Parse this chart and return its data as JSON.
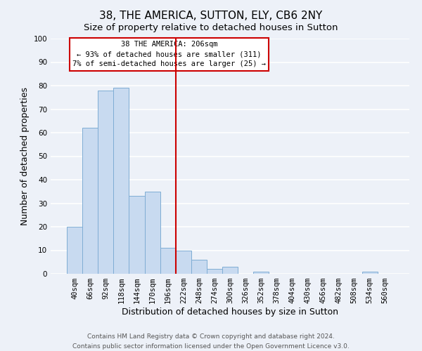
{
  "title": "38, THE AMERICA, SUTTON, ELY, CB6 2NY",
  "subtitle": "Size of property relative to detached houses in Sutton",
  "xlabel": "Distribution of detached houses by size in Sutton",
  "ylabel": "Number of detached properties",
  "bar_labels": [
    "40sqm",
    "66sqm",
    "92sqm",
    "118sqm",
    "144sqm",
    "170sqm",
    "196sqm",
    "222sqm",
    "248sqm",
    "274sqm",
    "300sqm",
    "326sqm",
    "352sqm",
    "378sqm",
    "404sqm",
    "430sqm",
    "456sqm",
    "482sqm",
    "508sqm",
    "534sqm",
    "560sqm"
  ],
  "bar_values": [
    20,
    62,
    78,
    79,
    33,
    35,
    11,
    10,
    6,
    2,
    3,
    0,
    1,
    0,
    0,
    0,
    0,
    0,
    0,
    1,
    0
  ],
  "bar_color": "#c8daf0",
  "bar_edge_color": "#7fadd4",
  "vline_x": 6.5,
  "vline_color": "#cc0000",
  "ylim": [
    0,
    100
  ],
  "yticks": [
    0,
    10,
    20,
    30,
    40,
    50,
    60,
    70,
    80,
    90,
    100
  ],
  "annotation_title": "38 THE AMERICA: 206sqm",
  "annotation_line1": "← 93% of detached houses are smaller (311)",
  "annotation_line2": "7% of semi-detached houses are larger (25) →",
  "annotation_box_color": "#ffffff",
  "annotation_box_edge": "#cc0000",
  "footer_line1": "Contains HM Land Registry data © Crown copyright and database right 2024.",
  "footer_line2": "Contains public sector information licensed under the Open Government Licence v3.0.",
  "bg_color": "#edf1f8",
  "plot_bg_color": "#edf1f8",
  "grid_color": "#ffffff",
  "title_fontsize": 11,
  "subtitle_fontsize": 9.5,
  "axis_label_fontsize": 9,
  "tick_fontsize": 7.5,
  "footer_fontsize": 6.5,
  "annotation_fontsize": 7.5
}
